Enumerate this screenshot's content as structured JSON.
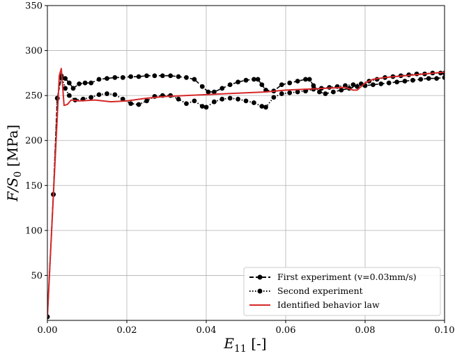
{
  "chart_data": {
    "type": "line",
    "title": "",
    "xlabel_main": "E",
    "xlabel_sub": "11",
    "xlabel_unit": " [-]",
    "ylabel_main": "F/S",
    "ylabel_sub": "0",
    "ylabel_unit": " [MPa]",
    "xlim": [
      0,
      0.1
    ],
    "ylim": [
      0,
      350
    ],
    "x_ticks": [
      0.0,
      0.02,
      0.04,
      0.06,
      0.08,
      0.1
    ],
    "x_tick_labels": [
      "0.00",
      "0.02",
      "0.04",
      "0.06",
      "0.08",
      "0.10"
    ],
    "y_ticks": [
      50,
      100,
      150,
      200,
      250,
      300,
      350
    ],
    "y_tick_labels": [
      "50",
      "100",
      "150",
      "200",
      "250",
      "300",
      "350"
    ],
    "grid": true,
    "legend_position": "bottom-right",
    "series": [
      {
        "name": "First experiment (v=0.03mm/s)",
        "color": "#000000",
        "style": "dashed-markers",
        "points": [
          [
            0.0,
            4
          ],
          [
            0.0015,
            140
          ],
          [
            0.0025,
            247
          ],
          [
            0.0035,
            270
          ],
          [
            0.0045,
            269
          ],
          [
            0.0055,
            264
          ],
          [
            0.0065,
            258
          ],
          [
            0.008,
            263
          ],
          [
            0.0095,
            264
          ],
          [
            0.011,
            264
          ],
          [
            0.013,
            268
          ],
          [
            0.015,
            269
          ],
          [
            0.017,
            270
          ],
          [
            0.019,
            270
          ],
          [
            0.021,
            271
          ],
          [
            0.023,
            271
          ],
          [
            0.025,
            272
          ],
          [
            0.027,
            272
          ],
          [
            0.029,
            272
          ],
          [
            0.031,
            272
          ],
          [
            0.033,
            271
          ],
          [
            0.035,
            270
          ],
          [
            0.037,
            268
          ],
          [
            0.039,
            260
          ],
          [
            0.0405,
            254
          ],
          [
            0.042,
            254
          ],
          [
            0.044,
            258
          ],
          [
            0.046,
            262
          ],
          [
            0.048,
            265
          ],
          [
            0.05,
            267
          ],
          [
            0.052,
            268
          ],
          [
            0.053,
            268
          ],
          [
            0.054,
            262
          ],
          [
            0.055,
            256
          ],
          [
            0.057,
            255
          ],
          [
            0.059,
            262
          ],
          [
            0.061,
            264
          ],
          [
            0.063,
            266
          ],
          [
            0.065,
            268
          ],
          [
            0.066,
            268
          ],
          [
            0.067,
            261
          ],
          [
            0.0685,
            254
          ],
          [
            0.07,
            252
          ],
          [
            0.072,
            254
          ],
          [
            0.074,
            256
          ],
          [
            0.076,
            258
          ],
          [
            0.078,
            260
          ],
          [
            0.08,
            261
          ],
          [
            0.082,
            262
          ],
          [
            0.084,
            263
          ],
          [
            0.086,
            264
          ],
          [
            0.088,
            265
          ],
          [
            0.09,
            266
          ],
          [
            0.092,
            267
          ],
          [
            0.094,
            268
          ],
          [
            0.096,
            269
          ],
          [
            0.098,
            269
          ],
          [
            0.1,
            270
          ]
        ]
      },
      {
        "name": "Second experiment",
        "color": "#000000",
        "style": "dotted-markers",
        "points": [
          [
            0.0,
            4
          ],
          [
            0.0015,
            140
          ],
          [
            0.0025,
            247
          ],
          [
            0.0035,
            272
          ],
          [
            0.0045,
            258
          ],
          [
            0.0055,
            250
          ],
          [
            0.007,
            245
          ],
          [
            0.009,
            246
          ],
          [
            0.011,
            248
          ],
          [
            0.013,
            251
          ],
          [
            0.015,
            252
          ],
          [
            0.017,
            251
          ],
          [
            0.019,
            246
          ],
          [
            0.021,
            241
          ],
          [
            0.023,
            240
          ],
          [
            0.025,
            244
          ],
          [
            0.027,
            249
          ],
          [
            0.029,
            250
          ],
          [
            0.031,
            250
          ],
          [
            0.033,
            246
          ],
          [
            0.035,
            241
          ],
          [
            0.037,
            244
          ],
          [
            0.039,
            238
          ],
          [
            0.04,
            237
          ],
          [
            0.042,
            243
          ],
          [
            0.044,
            246
          ],
          [
            0.046,
            247
          ],
          [
            0.048,
            246
          ],
          [
            0.05,
            244
          ],
          [
            0.052,
            242
          ],
          [
            0.054,
            238
          ],
          [
            0.055,
            237
          ],
          [
            0.057,
            248
          ],
          [
            0.059,
            252
          ],
          [
            0.061,
            253
          ],
          [
            0.063,
            254
          ],
          [
            0.065,
            255
          ],
          [
            0.067,
            257
          ],
          [
            0.069,
            258
          ],
          [
            0.071,
            259
          ],
          [
            0.073,
            260
          ],
          [
            0.075,
            261
          ],
          [
            0.077,
            262
          ],
          [
            0.079,
            263
          ],
          [
            0.081,
            266
          ],
          [
            0.083,
            268
          ],
          [
            0.085,
            270
          ],
          [
            0.087,
            271
          ],
          [
            0.089,
            272
          ],
          [
            0.091,
            273
          ],
          [
            0.093,
            274
          ],
          [
            0.095,
            274
          ],
          [
            0.097,
            275
          ],
          [
            0.099,
            275
          ],
          [
            0.1,
            275
          ]
        ]
      },
      {
        "name": "Identified behavior law",
        "color": "#d62728",
        "style": "solid",
        "points": [
          [
            0.0,
            4
          ],
          [
            0.003,
            272
          ],
          [
            0.0035,
            280
          ],
          [
            0.0042,
            239
          ],
          [
            0.005,
            240
          ],
          [
            0.006,
            245
          ],
          [
            0.008,
            244
          ],
          [
            0.012,
            245
          ],
          [
            0.016,
            243
          ],
          [
            0.02,
            244
          ],
          [
            0.025,
            247
          ],
          [
            0.03,
            249
          ],
          [
            0.035,
            250
          ],
          [
            0.04,
            251
          ],
          [
            0.045,
            252
          ],
          [
            0.05,
            253
          ],
          [
            0.055,
            254
          ],
          [
            0.06,
            256
          ],
          [
            0.065,
            257
          ],
          [
            0.07,
            258
          ],
          [
            0.075,
            259
          ],
          [
            0.077,
            256
          ],
          [
            0.078,
            256
          ],
          [
            0.08,
            264
          ],
          [
            0.082,
            268
          ],
          [
            0.085,
            270
          ],
          [
            0.09,
            272
          ],
          [
            0.095,
            274
          ],
          [
            0.1,
            276
          ]
        ]
      }
    ]
  }
}
